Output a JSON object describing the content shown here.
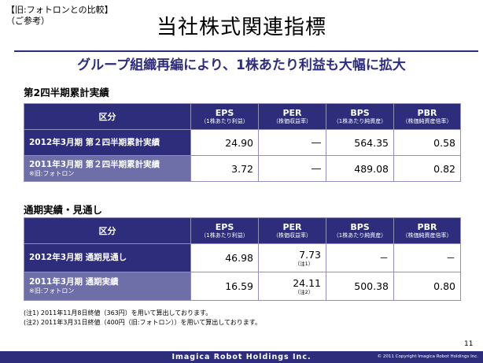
{
  "header": {
    "note_line1": "【旧:フォトロンとの比較】",
    "note_line2": "（ご参考）",
    "title": "当社株式関連指標",
    "headline": "グループ組織再編により、1株あたり利益も大幅に拡大"
  },
  "columns": {
    "label": "区分",
    "eps": "EPS",
    "eps_sub": "（1株あたり利益）",
    "per": "PER",
    "per_sub": "（株価収益率）",
    "bps": "BPS",
    "bps_sub": "（1株あたり純資産）",
    "pbr": "PBR",
    "pbr_sub": "（株価純資産倍率）"
  },
  "section1": {
    "title": "第2四半期累計実績",
    "rows": [
      {
        "label": "2012年3月期 第２四半期累計実績",
        "sub": "",
        "eps": "24.90",
        "per": "―",
        "bps": "564.35",
        "pbr": "0.58"
      },
      {
        "label": "2011年3月期 第２四半期累計実績",
        "sub": "※旧:フォトロン",
        "eps": "3.72",
        "per": "―",
        "bps": "489.08",
        "pbr": "0.82"
      }
    ]
  },
  "section2": {
    "title": "通期実績・見通し",
    "rows": [
      {
        "label": "2012年3月期 通期見通し",
        "sub": "",
        "eps": "46.98",
        "per": "7.73",
        "per_note": "（注1）",
        "bps": "－",
        "pbr": "－"
      },
      {
        "label": "2011年3月期 通期実績",
        "sub": "※旧:フォトロン",
        "eps": "16.59",
        "per": "24.11",
        "per_note": "（注2）",
        "bps": "500.38",
        "pbr": "0.80"
      }
    ]
  },
  "footnotes": [
    "(注1) 2011年11月8日終値（363円）を用いて算出しております。",
    "(注2) 2011年3月31日終値（400円（旧:フォトロン））を用いて算出しております。"
  ],
  "footer": {
    "page_number": "11",
    "company": "Imagica Robot Holdings Inc.",
    "copyright": "© 2011 Copyright Imagica Robot Holdings Inc."
  },
  "colors": {
    "brand": "#2e2d7c",
    "previous_row": "#6e6ea9"
  }
}
